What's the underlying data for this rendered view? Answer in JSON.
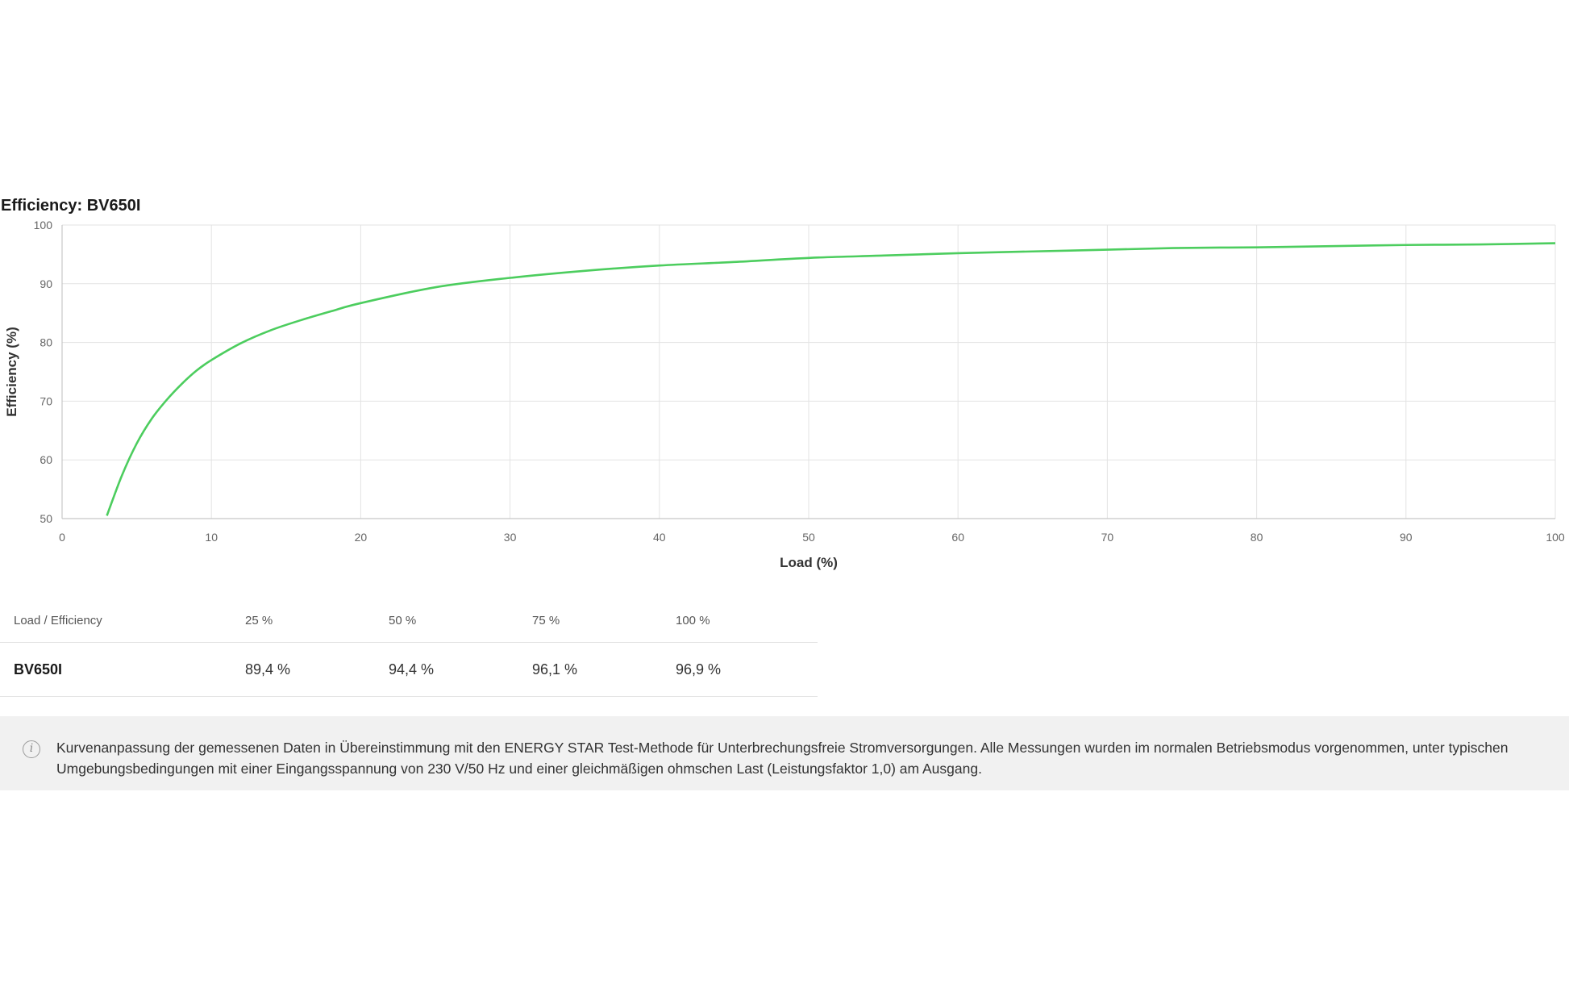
{
  "chart_data": {
    "type": "line",
    "title": "Efficiency: BV650I",
    "xlabel": "Load (%)",
    "ylabel": "Efficiency (%)",
    "xlim": [
      0,
      100
    ],
    "ylim": [
      50,
      100
    ],
    "xticks": [
      "0",
      "10",
      "20",
      "30",
      "40",
      "50",
      "60",
      "70",
      "80",
      "90",
      "100"
    ],
    "yticks": [
      "50",
      "60",
      "70",
      "80",
      "90",
      "100"
    ],
    "grid": true,
    "series": [
      {
        "color": "#4ccd5e",
        "x": [
          3,
          4,
          5,
          6,
          7,
          8,
          9,
          10,
          12,
          14,
          16,
          18,
          20,
          25,
          30,
          35,
          40,
          45,
          50,
          55,
          60,
          65,
          70,
          75,
          80,
          85,
          90,
          95,
          100
        ],
        "y": [
          50.5,
          57.3,
          62.8,
          67.0,
          70.2,
          72.9,
          75.2,
          77.0,
          79.9,
          82.1,
          83.8,
          85.3,
          86.7,
          89.4,
          91.0,
          92.2,
          93.1,
          93.7,
          94.4,
          94.8,
          95.2,
          95.5,
          95.8,
          96.1,
          96.2,
          96.4,
          96.6,
          96.7,
          96.9
        ]
      }
    ]
  },
  "table": {
    "header": [
      "Load / Efficiency",
      "25 %",
      "50 %",
      "75 %",
      "100 %"
    ],
    "rows": [
      [
        "BV650I",
        "89,4 %",
        "94,4 %",
        "96,1 %",
        "96,9 %"
      ]
    ]
  },
  "note": {
    "icon": "info-icon",
    "icon_glyph": "i",
    "text": "Kurvenanpassung der gemessenen Daten in Übereinstimmung mit den ENERGY STAR Test-Methode für Unterbrechungsfreie Stromversorgungen. Alle Messungen wurden im normalen Betriebsmodus vorgenommen, unter typischen Umgebungsbedingungen mit einer Eingangsspannung von 230 V/50 Hz und einer gleichmäßigen ohmschen Last (Leistungsfaktor 1,0) am Ausgang."
  }
}
